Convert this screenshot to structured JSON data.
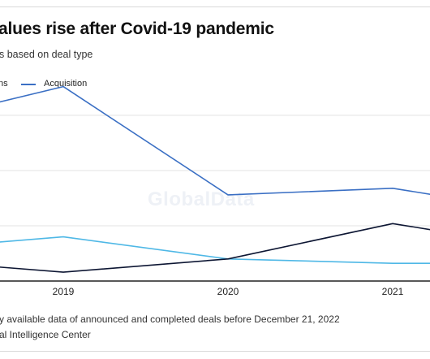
{
  "header": {
    "title": "alues rise after Covid-19 pandemic",
    "subtitle": "s based on deal type"
  },
  "legend": {
    "items": [
      {
        "label": "ns",
        "color": "#4fb8e6"
      },
      {
        "label": "Acquisition",
        "color": "#3a6fc4"
      }
    ]
  },
  "watermark": "GlobalData",
  "footnotes": {
    "note": "y available data of announced and completed deals before December 21, 2022",
    "source": "al Intelligence Center"
  },
  "colors": {
    "acquisition": "#3a6fc4",
    "light_series": "#4fb8e6",
    "dark_series": "#0d1633",
    "grid": "#e3e3e3",
    "axis": "#222222"
  },
  "chart_data": {
    "type": "line",
    "x": [
      2018.5,
      2019,
      2020,
      2021,
      2021.25
    ],
    "tick_labels": [
      "2019",
      "2020",
      "2021"
    ],
    "ylim": [
      0,
      100
    ],
    "grid": true,
    "series": [
      {
        "name": "Acquisition",
        "color": "#3a6fc4",
        "values": [
          79,
          88,
          39,
          42,
          39
        ]
      },
      {
        "name": "ns",
        "color": "#4fb8e6",
        "values": [
          17,
          20,
          10,
          8,
          8
        ]
      },
      {
        "name": "",
        "color": "#0d1633",
        "values": [
          7,
          4,
          10,
          26,
          23
        ]
      }
    ]
  }
}
